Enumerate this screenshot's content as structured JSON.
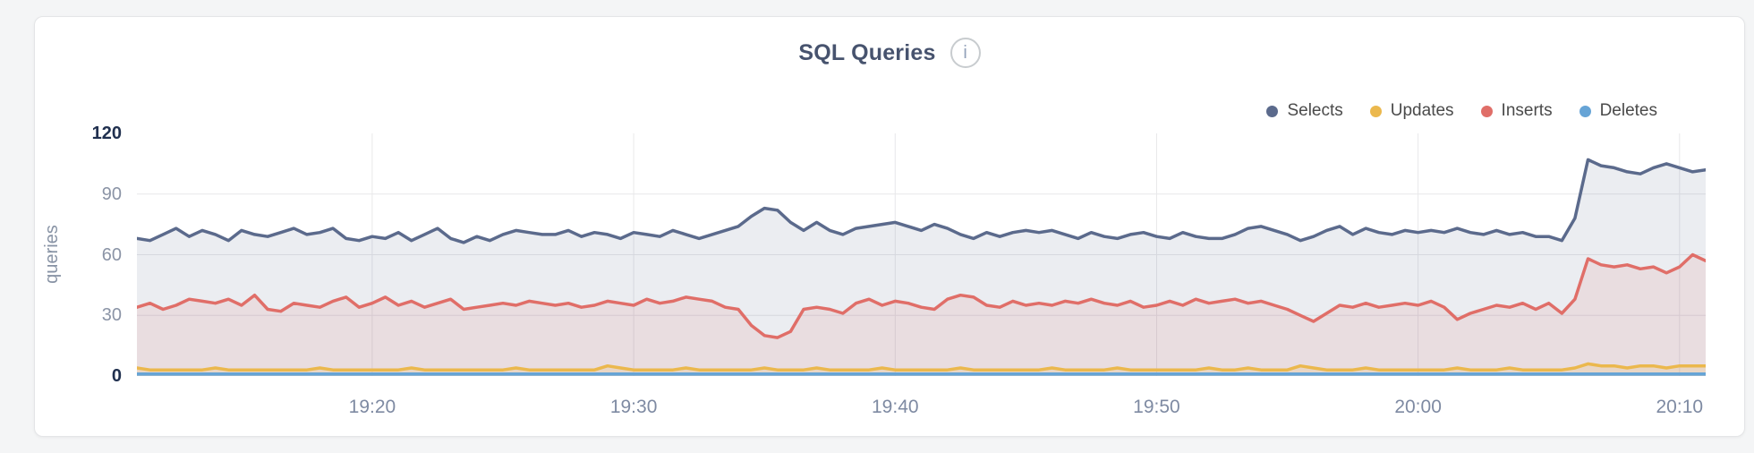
{
  "header": {
    "title": "SQL Queries",
    "info_icon_glyph": "i"
  },
  "colors": {
    "page_bg": "#f4f5f6",
    "card_bg": "#ffffff",
    "card_border": "#e4e5e7",
    "title": "#47536e",
    "grid": "#e8e8ea",
    "tick_label": "#7e8aa2",
    "tick_label_strong": "#20304f",
    "legend_text": "#4a4a4a"
  },
  "chart_data": {
    "type": "area",
    "title": "SQL Queries",
    "xlabel": "",
    "ylabel": "queries",
    "ylim": [
      0,
      120
    ],
    "y_ticks": [
      0,
      30,
      60,
      90,
      120
    ],
    "x_start": "19:11:00",
    "x_interval_seconds": 30,
    "x_ticks": [
      {
        "label": "19:20",
        "index": 18
      },
      {
        "label": "19:30",
        "index": 38
      },
      {
        "label": "19:40",
        "index": 58
      },
      {
        "label": "19:50",
        "index": 78
      },
      {
        "label": "20:00",
        "index": 98
      },
      {
        "label": "20:10",
        "index": 118
      }
    ],
    "layout": {
      "legend_position": "top-right",
      "grid": true,
      "grid_color": "#e8e8ea",
      "draw_order": [
        0,
        2,
        1,
        3
      ],
      "line_width": 3.5
    },
    "series": [
      {
        "name": "Selects",
        "color": "#5b6a8c",
        "fill": "rgba(91,106,140,0.12)",
        "values": [
          68,
          67,
          70,
          73,
          69,
          72,
          70,
          67,
          72,
          70,
          69,
          71,
          73,
          70,
          71,
          73,
          68,
          67,
          69,
          68,
          71,
          67,
          70,
          73,
          68,
          66,
          69,
          67,
          70,
          72,
          71,
          70,
          70,
          72,
          69,
          71,
          70,
          68,
          71,
          70,
          69,
          72,
          70,
          68,
          70,
          72,
          74,
          79,
          83,
          82,
          76,
          72,
          76,
          72,
          70,
          73,
          74,
          75,
          76,
          74,
          72,
          75,
          73,
          70,
          68,
          71,
          69,
          71,
          72,
          71,
          72,
          70,
          68,
          71,
          69,
          68,
          70,
          71,
          69,
          68,
          71,
          69,
          68,
          68,
          70,
          73,
          74,
          72,
          70,
          67,
          69,
          72,
          74,
          70,
          73,
          71,
          70,
          72,
          71,
          72,
          71,
          73,
          71,
          70,
          72,
          70,
          71,
          69,
          69,
          67,
          78,
          107,
          104,
          103,
          101,
          100,
          103,
          105,
          103,
          101,
          102
        ]
      },
      {
        "name": "Updates",
        "color": "#ebb84d",
        "fill": "rgba(235,184,77,0.18)",
        "values": [
          4,
          3,
          3,
          3,
          3,
          3,
          4,
          3,
          3,
          3,
          3,
          3,
          3,
          3,
          4,
          3,
          3,
          3,
          3,
          3,
          3,
          4,
          3,
          3,
          3,
          3,
          3,
          3,
          3,
          4,
          3,
          3,
          3,
          3,
          3,
          3,
          5,
          4,
          3,
          3,
          3,
          3,
          4,
          3,
          3,
          3,
          3,
          3,
          4,
          3,
          3,
          3,
          4,
          3,
          3,
          3,
          3,
          4,
          3,
          3,
          3,
          3,
          3,
          4,
          3,
          3,
          3,
          3,
          3,
          3,
          4,
          3,
          3,
          3,
          3,
          4,
          3,
          3,
          3,
          3,
          3,
          3,
          4,
          3,
          3,
          4,
          3,
          3,
          3,
          5,
          4,
          3,
          3,
          3,
          4,
          3,
          3,
          3,
          3,
          3,
          3,
          4,
          3,
          3,
          3,
          4,
          3,
          3,
          3,
          3,
          4,
          6,
          5,
          5,
          4,
          5,
          5,
          4,
          5,
          5,
          5
        ]
      },
      {
        "name": "Inserts",
        "color": "#e06e68",
        "fill": "rgba(224,110,104,0.12)",
        "values": [
          34,
          36,
          33,
          35,
          38,
          37,
          36,
          38,
          35,
          40,
          33,
          32,
          36,
          35,
          34,
          37,
          39,
          34,
          36,
          39,
          35,
          37,
          34,
          36,
          38,
          33,
          34,
          35,
          36,
          35,
          37,
          36,
          35,
          36,
          34,
          35,
          37,
          36,
          35,
          38,
          36,
          37,
          39,
          38,
          37,
          34,
          33,
          25,
          20,
          19,
          22,
          33,
          34,
          33,
          31,
          36,
          38,
          35,
          37,
          36,
          34,
          33,
          38,
          40,
          39,
          35,
          34,
          37,
          35,
          36,
          35,
          37,
          36,
          38,
          36,
          35,
          37,
          34,
          35,
          37,
          35,
          38,
          36,
          37,
          38,
          36,
          37,
          35,
          33,
          30,
          27,
          31,
          35,
          34,
          36,
          34,
          35,
          36,
          35,
          37,
          34,
          28,
          31,
          33,
          35,
          34,
          36,
          33,
          36,
          31,
          38,
          58,
          55,
          54,
          55,
          53,
          54,
          51,
          54,
          60,
          57
        ]
      },
      {
        "name": "Deletes",
        "color": "#66a4d6",
        "fill": "rgba(102,164,214,0.35)",
        "values": [
          1,
          1,
          1,
          1,
          1,
          1,
          1,
          1,
          1,
          1,
          1,
          1,
          1,
          1,
          1,
          1,
          1,
          1,
          1,
          1,
          1,
          1,
          1,
          1,
          1,
          1,
          1,
          1,
          1,
          1,
          1,
          1,
          1,
          1,
          1,
          1,
          1,
          1,
          1,
          1,
          1,
          1,
          1,
          1,
          1,
          1,
          1,
          1,
          1,
          1,
          1,
          1,
          1,
          1,
          1,
          1,
          1,
          1,
          1,
          1,
          1,
          1,
          1,
          1,
          1,
          1,
          1,
          1,
          1,
          1,
          1,
          1,
          1,
          1,
          1,
          1,
          1,
          1,
          1,
          1,
          1,
          1,
          1,
          1,
          1,
          1,
          1,
          1,
          1,
          1,
          1,
          1,
          1,
          1,
          1,
          1,
          1,
          1,
          1,
          1,
          1,
          1,
          1,
          1,
          1,
          1,
          1,
          1,
          1,
          1,
          1,
          1,
          1,
          1,
          1,
          1,
          1,
          1,
          1,
          1,
          1
        ]
      }
    ]
  }
}
